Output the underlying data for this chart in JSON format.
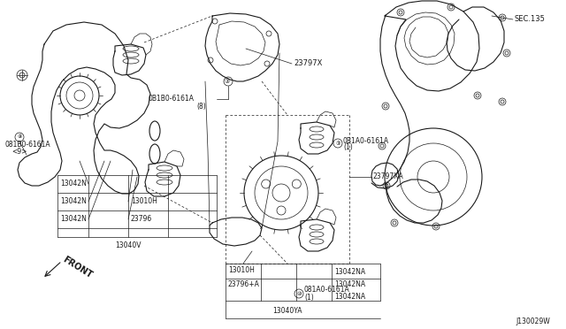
{
  "bg_color": "#ffffff",
  "line_color": "#1a1a1a",
  "fig_width": 6.4,
  "fig_height": 3.72,
  "dpi": 100,
  "watermark": "J130029W",
  "sec135": "SEC.135",
  "label_23797x": "23797X",
  "label_23797xa": "23797XA",
  "label_0b1b0_left": "081B0-6161A",
  "label_0b1b0_left_num": "<9>",
  "label_0b1b0_mid": "0B1B0-6161A",
  "label_0b1b0_mid_num": "(8)",
  "label_0b1a0_mid": "0B1A0-6161A",
  "label_0b1a0_mid_num": "(1)",
  "label_0b1a0_bot": "081A0-6161A",
  "label_0b1a0_bot_num": "(1)",
  "label_13042n_1": "13042N",
  "label_13042n_2": "13042N",
  "label_13042n_3": "13042N",
  "label_13010h_top": "13010H",
  "label_13010h_bot": "13010H",
  "label_23796": "23796",
  "label_23796a": "23796+A",
  "label_13040v": "13040V",
  "label_13040ya": "13040YA",
  "label_13042na_1": "13042NA",
  "label_13042na_2": "13042NA",
  "label_13042na_3": "13042NA",
  "label_front": "FRONT"
}
